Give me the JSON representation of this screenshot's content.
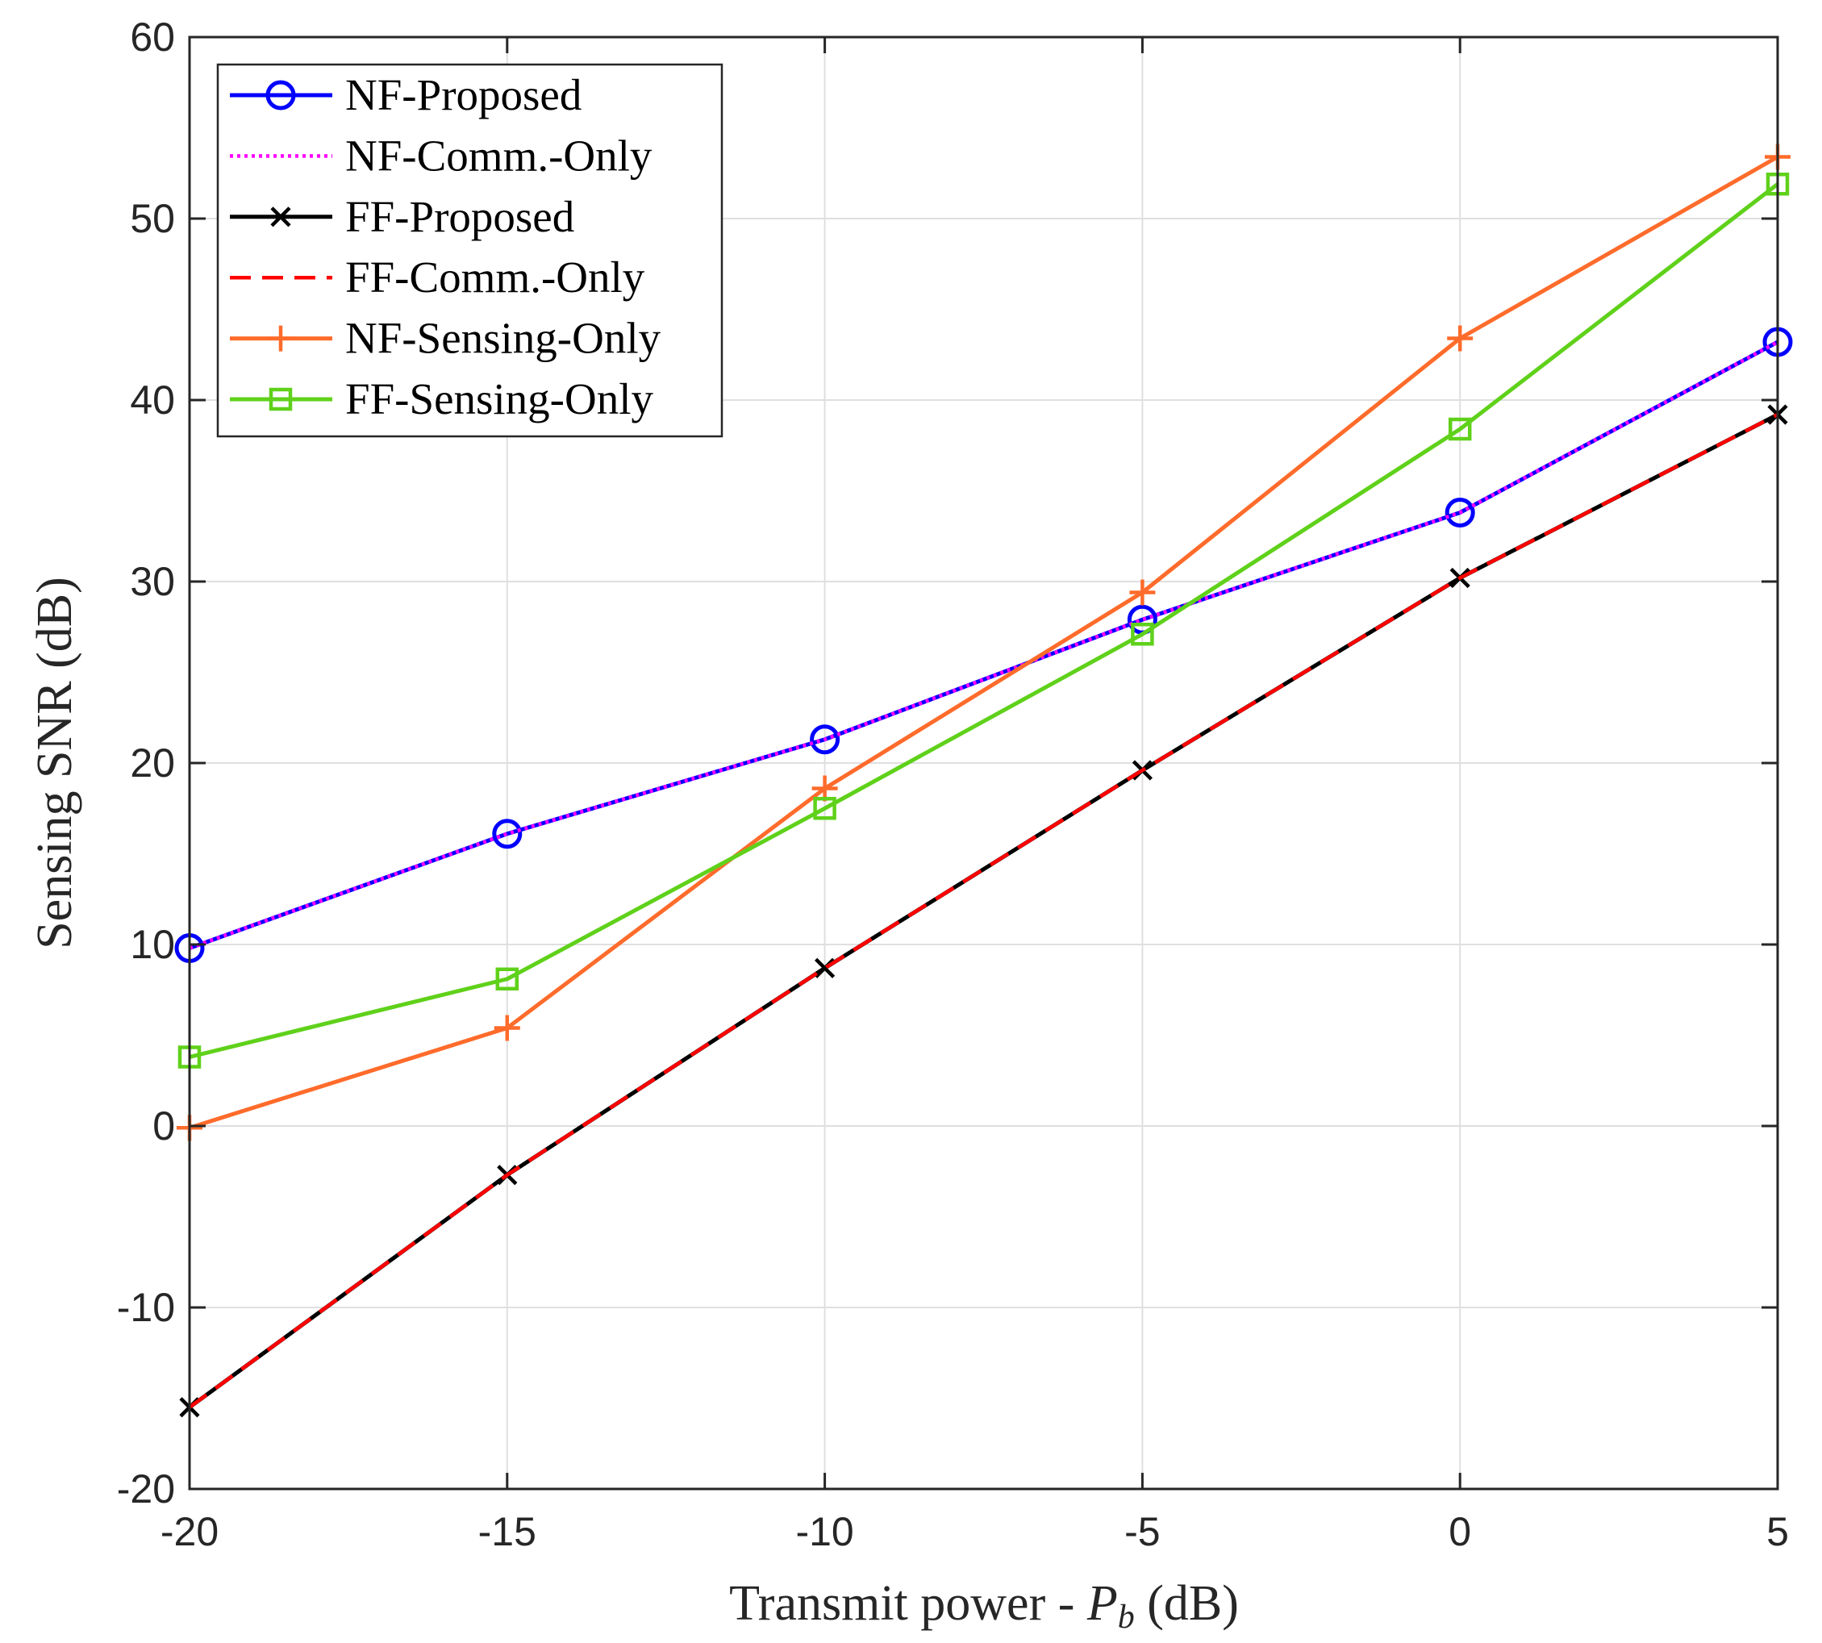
{
  "chart_data": {
    "type": "line",
    "title": "",
    "xlabel": "Transmit power - ",
    "xlabel_symbol": "P",
    "xlabel_subscript": "b",
    "xlabel_unit": " (dB)",
    "ylabel": "Sensing SNR (dB)",
    "x": [
      -20,
      -15,
      -10,
      -5,
      0,
      5
    ],
    "xlim": [
      -20,
      5
    ],
    "ylim": [
      -20,
      60
    ],
    "xticks": [
      -20,
      -15,
      -10,
      -5,
      0,
      5
    ],
    "yticks": [
      -20,
      -10,
      0,
      10,
      20,
      30,
      40,
      50,
      60
    ],
    "grid": true,
    "legend_position": "top-left",
    "series": [
      {
        "name": "NF-Proposed",
        "values": [
          9.8,
          16.1,
          21.3,
          27.9,
          33.8,
          43.2
        ],
        "color": "#0000ff",
        "dash": "solid",
        "marker": "circle"
      },
      {
        "name": "NF-Comm.-Only",
        "values": [
          9.8,
          16.1,
          21.3,
          27.9,
          33.8,
          43.2
        ],
        "color": "#ff00ff",
        "dash": "dotted",
        "marker": "none"
      },
      {
        "name": "FF-Proposed",
        "values": [
          -15.5,
          -2.7,
          8.7,
          19.6,
          30.2,
          39.2
        ],
        "color": "#000000",
        "dash": "solid",
        "marker": "x"
      },
      {
        "name": "FF-Comm.-Only",
        "values": [
          -15.5,
          -2.7,
          8.7,
          19.6,
          30.2,
          39.2
        ],
        "color": "#ff0000",
        "dash": "dashed",
        "marker": "none"
      },
      {
        "name": "NF-Sensing-Only",
        "values": [
          -0.1,
          5.4,
          18.6,
          29.4,
          43.4,
          53.4
        ],
        "color": "#ff6b2b",
        "dash": "solid",
        "marker": "plus"
      },
      {
        "name": "FF-Sensing-Only",
        "values": [
          3.8,
          8.1,
          17.5,
          27.1,
          38.4,
          51.9
        ],
        "color": "#5fd11a",
        "dash": "solid",
        "marker": "square"
      }
    ]
  }
}
